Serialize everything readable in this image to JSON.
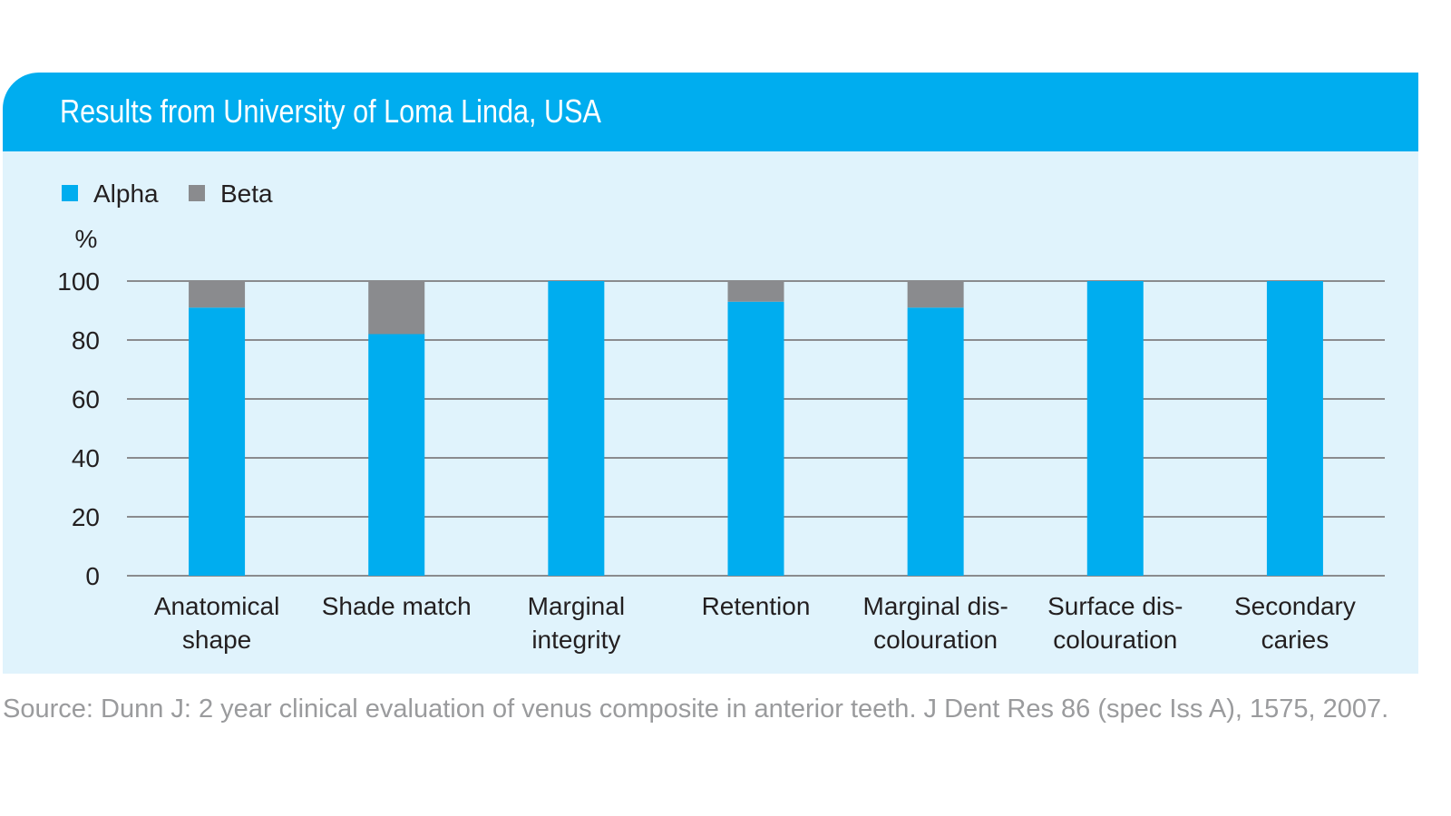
{
  "header": {
    "title": "Results from University of Loma Linda, USA"
  },
  "source": "Source: Dunn J: 2 year clinical evaluation of venus composite in anterior teeth. J Dent Res 86 (spec Iss A), 1575, 2007.",
  "chart_data": {
    "type": "bar",
    "stacked": true,
    "ylabel": "%",
    "ylim": [
      0,
      100
    ],
    "yticks": [
      0,
      20,
      40,
      60,
      80,
      100
    ],
    "grid": true,
    "legend_position": "top-left",
    "categories": [
      [
        "Anatomical",
        "shape"
      ],
      [
        "Shade match"
      ],
      [
        "Marginal",
        "integrity"
      ],
      [
        "Retention"
      ],
      [
        "Marginal dis-",
        "colouration"
      ],
      [
        "Surface dis-",
        "colouration"
      ],
      [
        "Secondary",
        "caries"
      ]
    ],
    "series": [
      {
        "name": "Alpha",
        "color": "#00adef",
        "values": [
          91,
          82,
          100,
          93,
          91,
          100,
          100
        ]
      },
      {
        "name": "Beta",
        "color": "#8a8b8e",
        "values": [
          9,
          18,
          0,
          7,
          9,
          0,
          0
        ]
      }
    ]
  }
}
